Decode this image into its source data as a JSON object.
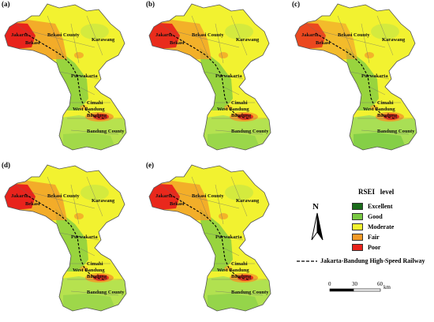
{
  "panels": [
    {
      "id": "a",
      "label": "(a)",
      "north_red": 1.0,
      "south_green": 0.35
    },
    {
      "id": "b",
      "label": "(b)",
      "north_red": 0.9,
      "south_green": 0.45
    },
    {
      "id": "c",
      "label": "(c)",
      "north_red": 0.6,
      "south_green": 0.75
    },
    {
      "id": "d",
      "label": "(d)",
      "north_red": 1.0,
      "south_green": 0.4
    },
    {
      "id": "e",
      "label": "(e)",
      "north_red": 0.95,
      "south_green": 0.5
    }
  ],
  "place_names": {
    "jakarta": "Jakarta",
    "bekasi": "Bekasi",
    "bekasi_county": "Bekasi County",
    "karawang": "Karawang",
    "purwakarta": "Purwakarta",
    "cimahi": "Cimahi",
    "west_bandung": "West Bandung",
    "bandung": "Bandung",
    "bandung_county": "Bandung County"
  },
  "legend": {
    "title": "RSEI   level",
    "north_label": "N",
    "items": [
      {
        "label": "Excellent",
        "color": "#1a6b1a"
      },
      {
        "label": "Good",
        "color": "#7ac943"
      },
      {
        "label": "Moderate",
        "color": "#f2f230"
      },
      {
        "label": "Fair",
        "color": "#f39a28"
      },
      {
        "label": "Poor",
        "color": "#e8231c"
      }
    ],
    "railway_label": "Jakarta-Bandung High-Speed Railway"
  },
  "scale": {
    "ticks": [
      "0",
      "30",
      "60"
    ],
    "unit": "km"
  },
  "colors": {
    "moderate": "#f2f230",
    "good": "#7ac943",
    "excellent": "#1a6b1a",
    "fair": "#f39a28",
    "poor": "#e8231c",
    "light_green": "#9fdc5a",
    "border": "#6b6b6b"
  }
}
